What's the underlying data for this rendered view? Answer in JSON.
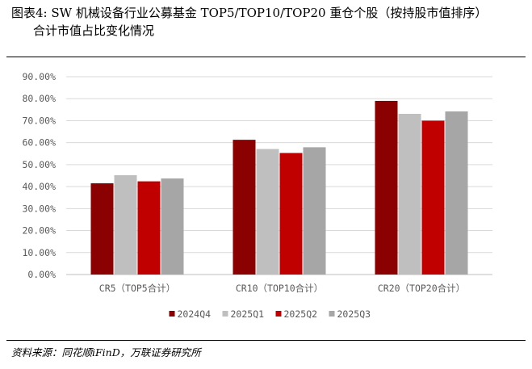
{
  "header": {
    "title_line1": "图表4:  SW 机械设备行业公募基金 TOP5/TOP10/TOP20 重仓个股（按持股市值排序）",
    "title_line2": "合计市值占比变化情况"
  },
  "source": "资料来源：同花顺iFinD，万联证券研究所",
  "chart_data": {
    "type": "bar",
    "categories": [
      "CR5（TOP5合计）",
      "CR10（TOP10合计）",
      "CR20（TOP20合计）"
    ],
    "series": [
      {
        "name": "2024Q4",
        "color": "#8B0000",
        "values": [
          41.5,
          61.3,
          79.0
        ]
      },
      {
        "name": "2025Q1",
        "color": "#BFBFBF",
        "values": [
          45.2,
          57.1,
          73.1
        ]
      },
      {
        "name": "2025Q2",
        "color": "#C00000",
        "values": [
          42.4,
          55.3,
          70.0
        ]
      },
      {
        "name": "2025Q3",
        "color": "#A6A6A6",
        "values": [
          43.7,
          57.9,
          74.2
        ]
      }
    ],
    "yticks": [
      "0.00%",
      "10.00%",
      "20.00%",
      "30.00%",
      "40.00%",
      "50.00%",
      "60.00%",
      "70.00%",
      "80.00%",
      "90.00%"
    ],
    "ylim": [
      0,
      90
    ],
    "grid": true,
    "legend_position": "bottom"
  }
}
